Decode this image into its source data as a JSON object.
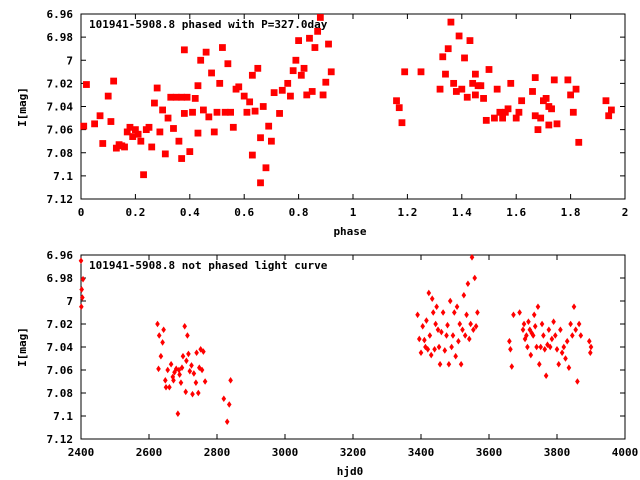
{
  "chart_data": [
    {
      "type": "scatter",
      "title": "101941-5908.8 phased with P=327.0day",
      "xlabel": "phase",
      "ylabel": "I[mag]",
      "xlim": [
        0,
        2
      ],
      "ylim": [
        7.12,
        6.96
      ],
      "y_inverted": true,
      "grid": false,
      "marker_color": "#ff0000",
      "x_ticks": [
        "0",
        "0.2",
        "0.4",
        "0.6",
        "0.8",
        "1",
        "1.2",
        "1.4",
        "1.6",
        "1.8",
        "2"
      ],
      "y_ticks": [
        "6.96",
        "6.98",
        "7",
        "7.02",
        "7.04",
        "7.06",
        "7.08",
        "7.1",
        "7.12"
      ],
      "points": [
        [
          0.01,
          7.057
        ],
        [
          0.02,
          7.021
        ],
        [
          0.05,
          7.055
        ],
        [
          0.07,
          7.048
        ],
        [
          0.08,
          7.072
        ],
        [
          0.1,
          7.031
        ],
        [
          0.11,
          7.053
        ],
        [
          0.12,
          7.018
        ],
        [
          0.13,
          7.076
        ],
        [
          0.14,
          7.073
        ],
        [
          0.15,
          7.074
        ],
        [
          0.16,
          7.075
        ],
        [
          0.17,
          7.062
        ],
        [
          0.18,
          7.058
        ],
        [
          0.19,
          7.066
        ],
        [
          0.2,
          7.06
        ],
        [
          0.21,
          7.064
        ],
        [
          0.22,
          7.07
        ],
        [
          0.23,
          7.099
        ],
        [
          0.24,
          7.06
        ],
        [
          0.25,
          7.058
        ],
        [
          0.26,
          7.075
        ],
        [
          0.27,
          7.037
        ],
        [
          0.28,
          7.024
        ],
        [
          0.29,
          7.062
        ],
        [
          0.3,
          7.043
        ],
        [
          0.31,
          7.081
        ],
        [
          0.32,
          7.05
        ],
        [
          0.33,
          7.032
        ],
        [
          0.34,
          7.059
        ],
        [
          0.35,
          7.032
        ],
        [
          0.36,
          7.07
        ],
        [
          0.37,
          7.085
        ],
        [
          0.37,
          7.032
        ],
        [
          0.38,
          7.046
        ],
        [
          0.38,
          6.991
        ],
        [
          0.39,
          7.032
        ],
        [
          0.4,
          7.079
        ],
        [
          0.41,
          7.045
        ],
        [
          0.42,
          7.033
        ],
        [
          0.43,
          7.063
        ],
        [
          0.43,
          7.022
        ],
        [
          0.44,
          7.0
        ],
        [
          0.45,
          7.043
        ],
        [
          0.46,
          6.993
        ],
        [
          0.47,
          7.049
        ],
        [
          0.48,
          7.011
        ],
        [
          0.49,
          7.062
        ],
        [
          0.5,
          7.045
        ],
        [
          0.51,
          7.02
        ],
        [
          0.52,
          6.989
        ],
        [
          0.53,
          7.045
        ],
        [
          0.54,
          7.003
        ],
        [
          0.55,
          7.045
        ],
        [
          0.56,
          7.058
        ],
        [
          0.57,
          7.025
        ],
        [
          0.58,
          7.023
        ],
        [
          0.6,
          7.031
        ],
        [
          0.61,
          7.045
        ],
        [
          0.62,
          7.036
        ],
        [
          0.63,
          7.082
        ],
        [
          0.63,
          7.013
        ],
        [
          0.64,
          7.044
        ],
        [
          0.65,
          7.007
        ],
        [
          0.66,
          7.067
        ],
        [
          0.66,
          7.106
        ],
        [
          0.67,
          7.04
        ],
        [
          0.68,
          7.093
        ],
        [
          0.69,
          7.057
        ],
        [
          0.7,
          7.07
        ],
        [
          0.71,
          7.028
        ],
        [
          0.73,
          7.046
        ],
        [
          0.74,
          7.026
        ],
        [
          0.76,
          7.02
        ],
        [
          0.77,
          7.031
        ],
        [
          0.78,
          7.009
        ],
        [
          0.79,
          7.0
        ],
        [
          0.8,
          6.983
        ],
        [
          0.81,
          7.013
        ],
        [
          0.82,
          7.007
        ],
        [
          0.83,
          7.03
        ],
        [
          0.84,
          6.981
        ],
        [
          0.85,
          7.027
        ],
        [
          0.86,
          6.989
        ],
        [
          0.87,
          6.975
        ],
        [
          0.88,
          6.963
        ],
        [
          0.89,
          7.03
        ],
        [
          0.9,
          7.019
        ],
        [
          0.91,
          6.986
        ],
        [
          0.92,
          7.01
        ],
        [
          1.16,
          7.035
        ],
        [
          1.17,
          7.041
        ],
        [
          1.18,
          7.054
        ],
        [
          1.19,
          7.01
        ],
        [
          1.25,
          7.01
        ],
        [
          1.32,
          7.025
        ],
        [
          1.33,
          6.997
        ],
        [
          1.34,
          7.012
        ],
        [
          1.35,
          6.99
        ],
        [
          1.36,
          6.967
        ],
        [
          1.37,
          7.02
        ],
        [
          1.38,
          7.027
        ],
        [
          1.39,
          6.979
        ],
        [
          1.4,
          7.025
        ],
        [
          1.41,
          6.998
        ],
        [
          1.42,
          7.032
        ],
        [
          1.43,
          6.983
        ],
        [
          1.44,
          7.02
        ],
        [
          1.45,
          7.03
        ],
        [
          1.45,
          7.012
        ],
        [
          1.46,
          7.022
        ],
        [
          1.47,
          7.022
        ],
        [
          1.48,
          7.033
        ],
        [
          1.49,
          7.052
        ],
        [
          1.5,
          7.008
        ],
        [
          1.52,
          7.05
        ],
        [
          1.53,
          7.025
        ],
        [
          1.54,
          7.045
        ],
        [
          1.55,
          7.05
        ],
        [
          1.56,
          7.045
        ],
        [
          1.57,
          7.042
        ],
        [
          1.58,
          7.02
        ],
        [
          1.6,
          7.05
        ],
        [
          1.61,
          7.045
        ],
        [
          1.62,
          7.035
        ],
        [
          1.66,
          7.027
        ],
        [
          1.67,
          7.015
        ],
        [
          1.67,
          7.048
        ],
        [
          1.68,
          7.06
        ],
        [
          1.69,
          7.05
        ],
        [
          1.7,
          7.035
        ],
        [
          1.71,
          7.033
        ],
        [
          1.72,
          7.04
        ],
        [
          1.72,
          7.056
        ],
        [
          1.73,
          7.042
        ],
        [
          1.74,
          7.017
        ],
        [
          1.75,
          7.055
        ],
        [
          1.79,
          7.017
        ],
        [
          1.8,
          7.03
        ],
        [
          1.81,
          7.045
        ],
        [
          1.82,
          7.025
        ],
        [
          1.83,
          7.071
        ],
        [
          1.93,
          7.035
        ],
        [
          1.94,
          7.048
        ],
        [
          1.95,
          7.043
        ]
      ]
    },
    {
      "type": "scatter",
      "title": "101941-5908.8 not phased light curve",
      "xlabel": "hjd0",
      "ylabel": "I[mag]",
      "xlim": [
        2400,
        4000
      ],
      "ylim": [
        7.12,
        6.96
      ],
      "y_inverted": true,
      "grid": false,
      "marker_color": "#ff0000",
      "x_ticks": [
        "2400",
        "2600",
        "2800",
        "3000",
        "3200",
        "3400",
        "3600",
        "3800",
        "4000"
      ],
      "y_ticks": [
        "6.96",
        "6.98",
        "7",
        "7.02",
        "7.04",
        "7.06",
        "7.08",
        "7.1",
        "7.12"
      ],
      "points": [
        [
          2400,
          6.965
        ],
        [
          2401,
          7.005
        ],
        [
          2402,
          6.99
        ],
        [
          2404,
          6.997
        ],
        [
          2406,
          6.981
        ],
        [
          2625,
          7.02
        ],
        [
          2628,
          7.059
        ],
        [
          2630,
          7.03
        ],
        [
          2635,
          7.048
        ],
        [
          2640,
          7.036
        ],
        [
          2643,
          7.025
        ],
        [
          2648,
          7.069
        ],
        [
          2650,
          7.075
        ],
        [
          2655,
          7.06
        ],
        [
          2660,
          7.075
        ],
        [
          2665,
          7.055
        ],
        [
          2670,
          7.066
        ],
        [
          2672,
          7.069
        ],
        [
          2675,
          7.062
        ],
        [
          2680,
          7.059
        ],
        [
          2685,
          7.098
        ],
        [
          2688,
          7.06
        ],
        [
          2690,
          7.064
        ],
        [
          2694,
          7.071
        ],
        [
          2697,
          7.058
        ],
        [
          2700,
          7.048
        ],
        [
          2705,
          7.022
        ],
        [
          2708,
          7.079
        ],
        [
          2710,
          7.052
        ],
        [
          2713,
          7.03
        ],
        [
          2716,
          7.046
        ],
        [
          2720,
          7.061
        ],
        [
          2725,
          7.056
        ],
        [
          2728,
          7.081
        ],
        [
          2732,
          7.063
        ],
        [
          2738,
          7.071
        ],
        [
          2740,
          7.045
        ],
        [
          2745,
          7.08
        ],
        [
          2748,
          7.058
        ],
        [
          2752,
          7.042
        ],
        [
          2756,
          7.06
        ],
        [
          2760,
          7.044
        ],
        [
          2765,
          7.07
        ],
        [
          2820,
          7.085
        ],
        [
          2830,
          7.105
        ],
        [
          2836,
          7.09
        ],
        [
          2840,
          7.069
        ],
        [
          3390,
          7.012
        ],
        [
          3395,
          7.033
        ],
        [
          3400,
          7.045
        ],
        [
          3405,
          7.022
        ],
        [
          3410,
          7.034
        ],
        [
          3413,
          7.04
        ],
        [
          3416,
          7.017
        ],
        [
          3420,
          7.042
        ],
        [
          3423,
          6.993
        ],
        [
          3426,
          7.03
        ],
        [
          3430,
          7.047
        ],
        [
          3433,
          6.998
        ],
        [
          3436,
          7.01
        ],
        [
          3440,
          7.042
        ],
        [
          3443,
          7.02
        ],
        [
          3446,
          7.005
        ],
        [
          3450,
          7.025
        ],
        [
          3453,
          7.04
        ],
        [
          3456,
          7.055
        ],
        [
          3460,
          7.027
        ],
        [
          3465,
          7.01
        ],
        [
          3470,
          7.043
        ],
        [
          3475,
          7.03
        ],
        [
          3478,
          7.021
        ],
        [
          3482,
          7.055
        ],
        [
          3486,
          7.0
        ],
        [
          3490,
          7.04
        ],
        [
          3494,
          7.03
        ],
        [
          3498,
          7.01
        ],
        [
          3502,
          7.048
        ],
        [
          3506,
          7.005
        ],
        [
          3510,
          7.035
        ],
        [
          3514,
          7.02
        ],
        [
          3518,
          7.055
        ],
        [
          3522,
          7.025
        ],
        [
          3526,
          6.995
        ],
        [
          3530,
          7.03
        ],
        [
          3534,
          7.012
        ],
        [
          3538,
          6.985
        ],
        [
          3542,
          7.033
        ],
        [
          3546,
          7.02
        ],
        [
          3550,
          6.962
        ],
        [
          3554,
          7.025
        ],
        [
          3558,
          6.98
        ],
        [
          3562,
          7.022
        ],
        [
          3566,
          7.01
        ],
        [
          3660,
          7.035
        ],
        [
          3663,
          7.042
        ],
        [
          3667,
          7.057
        ],
        [
          3672,
          7.012
        ],
        [
          3690,
          7.01
        ],
        [
          3700,
          7.025
        ],
        [
          3703,
          7.02
        ],
        [
          3706,
          7.033
        ],
        [
          3710,
          7.03
        ],
        [
          3713,
          7.04
        ],
        [
          3716,
          7.018
        ],
        [
          3720,
          7.025
        ],
        [
          3723,
          7.047
        ],
        [
          3726,
          7.028
        ],
        [
          3730,
          7.03
        ],
        [
          3733,
          7.012
        ],
        [
          3736,
          7.022
        ],
        [
          3740,
          7.04
        ],
        [
          3744,
          7.005
        ],
        [
          3748,
          7.055
        ],
        [
          3752,
          7.04
        ],
        [
          3756,
          7.02
        ],
        [
          3760,
          7.03
        ],
        [
          3764,
          7.042
        ],
        [
          3768,
          7.065
        ],
        [
          3772,
          7.038
        ],
        [
          3776,
          7.025
        ],
        [
          3780,
          7.04
        ],
        [
          3785,
          7.033
        ],
        [
          3790,
          7.018
        ],
        [
          3795,
          7.03
        ],
        [
          3800,
          7.042
        ],
        [
          3805,
          7.055
        ],
        [
          3810,
          7.025
        ],
        [
          3815,
          7.045
        ],
        [
          3820,
          7.04
        ],
        [
          3825,
          7.05
        ],
        [
          3830,
          7.035
        ],
        [
          3835,
          7.058
        ],
        [
          3840,
          7.02
        ],
        [
          3845,
          7.03
        ],
        [
          3850,
          7.005
        ],
        [
          3855,
          7.025
        ],
        [
          3860,
          7.07
        ],
        [
          3865,
          7.02
        ],
        [
          3870,
          7.03
        ],
        [
          3895,
          7.035
        ],
        [
          3898,
          7.045
        ],
        [
          3900,
          7.04
        ]
      ]
    }
  ]
}
